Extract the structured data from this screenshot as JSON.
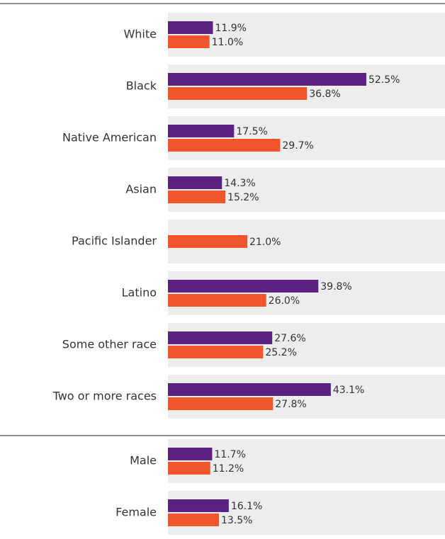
{
  "chart_data": [
    {
      "type": "bar",
      "orientation": "horizontal",
      "categories": [
        "White",
        "Black",
        "Native American",
        "Asian",
        "Pacific Islander",
        "Latino",
        "Some other race",
        "Two or more races"
      ],
      "series": [
        {
          "color": "#5b2283",
          "values": [
            11.9,
            52.5,
            17.5,
            14.3,
            null,
            39.8,
            27.6,
            43.1
          ],
          "value_labels": [
            "11.9%",
            "52.5%",
            "17.5%",
            "14.3%",
            null,
            "39.8%",
            "27.6%",
            "43.1%"
          ]
        },
        {
          "color": "#f0562a",
          "values": [
            11.0,
            36.8,
            29.7,
            15.2,
            21.0,
            26.0,
            25.2,
            27.8
          ],
          "value_labels": [
            "11.0%",
            "36.8%",
            "29.7%",
            "15.2%",
            "21.0%",
            "26.0%",
            "25.2%",
            "27.8%"
          ]
        }
      ]
    },
    {
      "type": "bar",
      "orientation": "horizontal",
      "categories": [
        "Male",
        "Female"
      ],
      "series": [
        {
          "color": "#5b2283",
          "values": [
            11.7,
            16.1
          ],
          "value_labels": [
            "11.7%",
            "16.1%"
          ]
        },
        {
          "color": "#f0562a",
          "values": [
            11.2,
            13.5
          ],
          "value_labels": [
            "11.2%",
            "13.5%"
          ]
        }
      ]
    }
  ]
}
